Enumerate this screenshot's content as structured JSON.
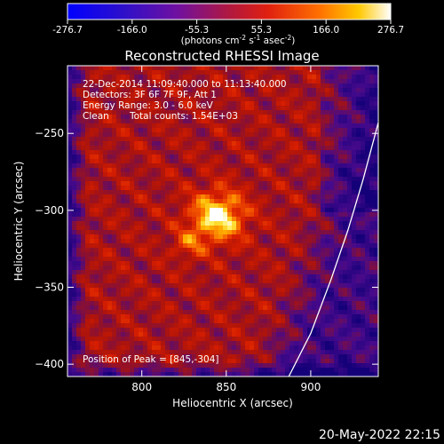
{
  "chart_data": {
    "type": "heatmap",
    "title": "Reconstructed RHESSI Image",
    "xlabel": "Heliocentric X (arcsec)",
    "ylabel": "Heliocentric Y (arcsec)",
    "xlim": [
      756,
      940
    ],
    "ylim": [
      -408,
      -206
    ],
    "x_ticks": [
      "800",
      "850",
      "900"
    ],
    "x_tick_values": [
      800,
      850,
      900
    ],
    "y_ticks": [
      "-250",
      "-300",
      "-350",
      "-400"
    ],
    "y_tick_values": [
      -250,
      -300,
      -350,
      -400
    ],
    "colorbar": {
      "tick_labels": [
        "-276.7",
        "-166.0",
        "-55.3",
        "55.3",
        "166.0",
        "276.7"
      ],
      "tick_values": [
        -276.7,
        -166.0,
        -55.3,
        55.3,
        166.0,
        276.7
      ],
      "range": [
        -276.7,
        276.7
      ],
      "units_main": "(photons cm",
      "units_exp1": "-2",
      "units_mid1": " s",
      "units_exp2": "-1",
      "units_mid2": " asec",
      "units_exp3": "-2",
      "units_end": ")",
      "colors": [
        "#0000ff",
        "#5a0ca0",
        "#8c1090",
        "#c81818",
        "#ff6000",
        "#ffc000",
        "#ffffff"
      ]
    },
    "annotations": {
      "time_range": "22-Dec-2014 11:09:40.000 to 11:13:40.000",
      "detectors": "Detectors: 3F 6F 7F 9F, Att 1",
      "energy": "Energy Range: 3.0 - 6.0 keV",
      "algorithm": "Clean",
      "counts": "Total counts: 1.54E+03",
      "peak": "Position of Peak = [845,-304]"
    },
    "peak_position": [
      845,
      -304
    ],
    "limb_curve": [
      [
        887,
        -408
      ],
      [
        900,
        -380
      ],
      [
        912,
        -345
      ],
      [
        922,
        -313
      ],
      [
        931,
        -280
      ],
      [
        940,
        -243
      ]
    ]
  },
  "footer": {
    "date": "20-May-2022 22:15"
  }
}
